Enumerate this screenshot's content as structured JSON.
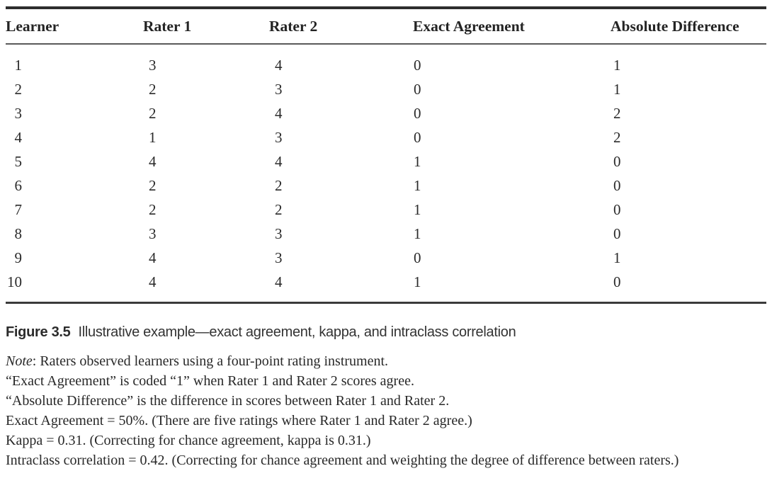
{
  "table": {
    "headers": [
      "Learner",
      "Rater 1",
      "Rater 2",
      "Exact Agreement",
      "Absolute Difference"
    ],
    "rows": [
      {
        "learner": "1",
        "rater1": "3",
        "rater2": "4",
        "exact": "0",
        "absdiff": "1"
      },
      {
        "learner": "2",
        "rater1": "2",
        "rater2": "3",
        "exact": "0",
        "absdiff": "1"
      },
      {
        "learner": "3",
        "rater1": "2",
        "rater2": "4",
        "exact": "0",
        "absdiff": "2"
      },
      {
        "learner": "4",
        "rater1": "1",
        "rater2": "3",
        "exact": "0",
        "absdiff": "2"
      },
      {
        "learner": "5",
        "rater1": "4",
        "rater2": "4",
        "exact": "1",
        "absdiff": "0"
      },
      {
        "learner": "6",
        "rater1": "2",
        "rater2": "2",
        "exact": "1",
        "absdiff": "0"
      },
      {
        "learner": "7",
        "rater1": "2",
        "rater2": "2",
        "exact": "1",
        "absdiff": "0"
      },
      {
        "learner": "8",
        "rater1": "3",
        "rater2": "3",
        "exact": "1",
        "absdiff": "0"
      },
      {
        "learner": "9",
        "rater1": "4",
        "rater2": "3",
        "exact": "0",
        "absdiff": "1"
      },
      {
        "learner": "10",
        "rater1": "4",
        "rater2": "4",
        "exact": "1",
        "absdiff": "0"
      }
    ]
  },
  "caption": {
    "label": "Figure 3.5",
    "text": "Illustrative example—exact agreement, kappa, and intraclass correlation"
  },
  "notes": {
    "note_label": "Note",
    "note_text": ": Raters observed learners using a four-point rating instrument.",
    "lines": [
      "“Exact Agreement” is coded “1” when Rater 1 and Rater 2 scores agree.",
      "“Absolute Difference” is the difference in scores between Rater 1 and Rater 2.",
      "Exact Agreement = 50%. (There are five ratings where Rater 1 and Rater 2 agree.)",
      "Kappa = 0.31. (Correcting for chance agreement, kappa is 0.31.)",
      "Intraclass correlation = 0.42. (Correcting for chance agreement and weighting the degree of difference between raters.)"
    ]
  },
  "colors": {
    "text": "#2a2a2a",
    "rule_top": "#2e2e2e",
    "rule_mid": "#5a5a5a",
    "rule_bottom": "#3b3b3b",
    "background": "#ffffff"
  }
}
